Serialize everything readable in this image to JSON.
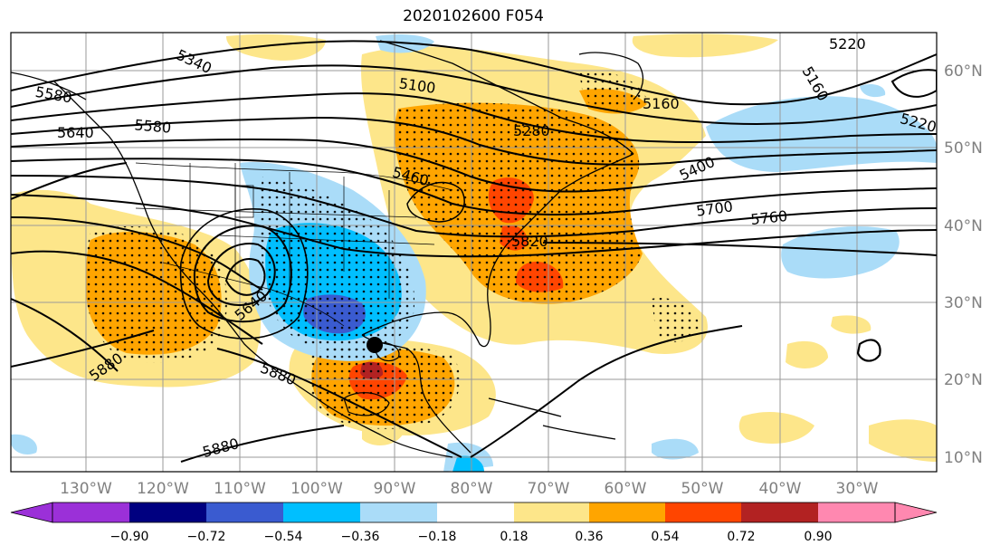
{
  "title": "2020102600 F054",
  "map": {
    "lon_labels": [
      "130°W",
      "120°W",
      "110°W",
      "100°W",
      "90°W",
      "80°W",
      "70°W",
      "60°W",
      "50°W",
      "40°W",
      "30°W"
    ],
    "lat_labels": [
      "60°N",
      "50°N",
      "40°N",
      "30°N",
      "20°N",
      "10°N"
    ],
    "contour_labels": [
      "5220",
      "5160",
      "5220",
      "5100",
      "5160",
      "5280",
      "5340",
      "5400",
      "5460",
      "5580",
      "5640",
      "5580",
      "5700",
      "5760",
      "5820",
      "5880",
      "5880",
      "5880",
      "5640"
    ],
    "storm_marker": "storm-center"
  },
  "colorbar": {
    "tick_labels": [
      "−0.90",
      "−0.72",
      "−0.54",
      "−0.36",
      "−0.18",
      "0.18",
      "0.36",
      "0.54",
      "0.72",
      "0.90"
    ],
    "colors": [
      "#9b30d8",
      "#000080",
      "#3a5bd0",
      "#00bfff",
      "#aadcf8",
      "#ffffff",
      "#fde68a",
      "#ffa500",
      "#ff4500",
      "#b22222",
      "#ff88b0"
    ]
  }
}
